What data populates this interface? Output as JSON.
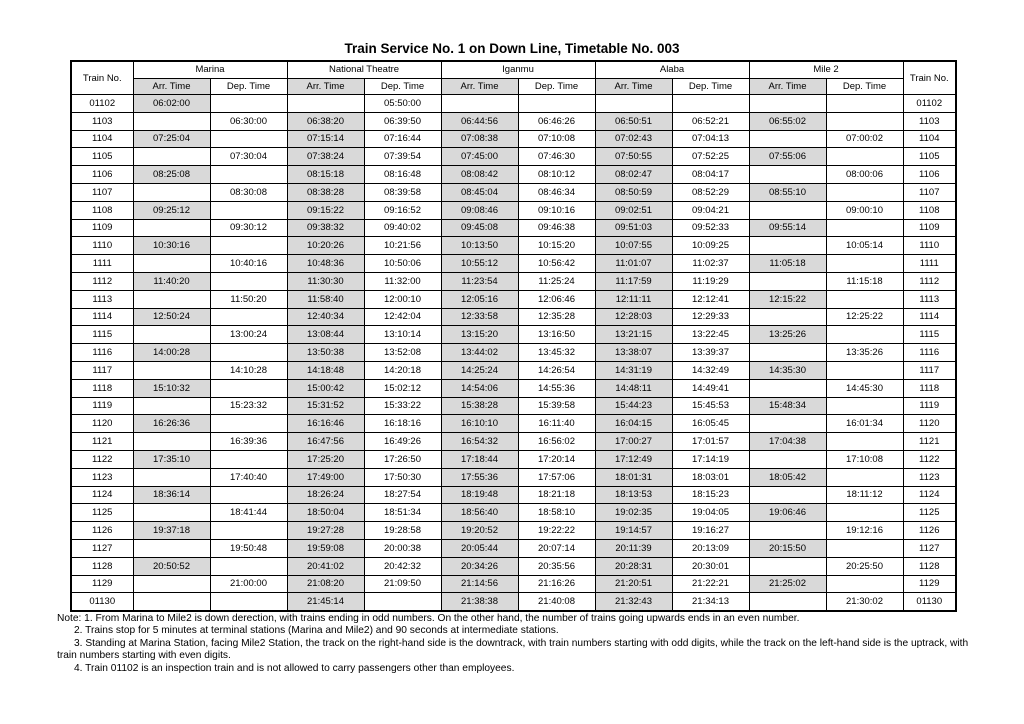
{
  "title": "Train Service No. 1 on Down Line, Timetable No. 003",
  "colors": {
    "shaded_cell": "#d9d9d9",
    "border": "#000000"
  },
  "table": {
    "train_no_header": "Train No.",
    "stations": [
      "Marina",
      "National Theatre",
      "Iganmu",
      "Alaba",
      "Mile 2"
    ],
    "arr_label": "Arr. Time",
    "dep_label": "Dep. Time",
    "columns_per_station": [
      "arr",
      "dep"
    ],
    "rows": [
      {
        "no": "01102",
        "times": [
          "06:02:00",
          "",
          "",
          "05:50:00",
          "",
          "",
          "",
          "",
          "",
          ""
        ]
      },
      {
        "no": "1103",
        "times": [
          "",
          "06:30:00",
          "06:38:20",
          "06:39:50",
          "06:44:56",
          "06:46:26",
          "06:50:51",
          "06:52:21",
          "06:55:02",
          ""
        ]
      },
      {
        "no": "1104",
        "times": [
          "07:25:04",
          "",
          "07:15:14",
          "07:16:44",
          "07:08:38",
          "07:10:08",
          "07:02:43",
          "07:04:13",
          "",
          "07:00:02"
        ]
      },
      {
        "no": "1105",
        "times": [
          "",
          "07:30:04",
          "07:38:24",
          "07:39:54",
          "07:45:00",
          "07:46:30",
          "07:50:55",
          "07:52:25",
          "07:55:06",
          ""
        ]
      },
      {
        "no": "1106",
        "times": [
          "08:25:08",
          "",
          "08:15:18",
          "08:16:48",
          "08:08:42",
          "08:10:12",
          "08:02:47",
          "08:04:17",
          "",
          "08:00:06"
        ]
      },
      {
        "no": "1107",
        "times": [
          "",
          "08:30:08",
          "08:38:28",
          "08:39:58",
          "08:45:04",
          "08:46:34",
          "08:50:59",
          "08:52:29",
          "08:55:10",
          ""
        ]
      },
      {
        "no": "1108",
        "times": [
          "09:25:12",
          "",
          "09:15:22",
          "09:16:52",
          "09:08:46",
          "09:10:16",
          "09:02:51",
          "09:04:21",
          "",
          "09:00:10"
        ]
      },
      {
        "no": "1109",
        "times": [
          "",
          "09:30:12",
          "09:38:32",
          "09:40:02",
          "09:45:08",
          "09:46:38",
          "09:51:03",
          "09:52:33",
          "09:55:14",
          ""
        ]
      },
      {
        "no": "1110",
        "times": [
          "10:30:16",
          "",
          "10:20:26",
          "10:21:56",
          "10:13:50",
          "10:15:20",
          "10:07:55",
          "10:09:25",
          "",
          "10:05:14"
        ]
      },
      {
        "no": "1111",
        "times": [
          "",
          "10:40:16",
          "10:48:36",
          "10:50:06",
          "10:55:12",
          "10:56:42",
          "11:01:07",
          "11:02:37",
          "11:05:18",
          ""
        ]
      },
      {
        "no": "1112",
        "times": [
          "11:40:20",
          "",
          "11:30:30",
          "11:32:00",
          "11:23:54",
          "11:25:24",
          "11:17:59",
          "11:19:29",
          "",
          "11:15:18"
        ]
      },
      {
        "no": "1113",
        "times": [
          "",
          "11:50:20",
          "11:58:40",
          "12:00:10",
          "12:05:16",
          "12:06:46",
          "12:11:11",
          "12:12:41",
          "12:15:22",
          ""
        ]
      },
      {
        "no": "1114",
        "times": [
          "12:50:24",
          "",
          "12:40:34",
          "12:42:04",
          "12:33:58",
          "12:35:28",
          "12:28:03",
          "12:29:33",
          "",
          "12:25:22"
        ]
      },
      {
        "no": "1115",
        "times": [
          "",
          "13:00:24",
          "13:08:44",
          "13:10:14",
          "13:15:20",
          "13:16:50",
          "13:21:15",
          "13:22:45",
          "13:25:26",
          ""
        ]
      },
      {
        "no": "1116",
        "times": [
          "14:00:28",
          "",
          "13:50:38",
          "13:52:08",
          "13:44:02",
          "13:45:32",
          "13:38:07",
          "13:39:37",
          "",
          "13:35:26"
        ]
      },
      {
        "no": "1117",
        "times": [
          "",
          "14:10:28",
          "14:18:48",
          "14:20:18",
          "14:25:24",
          "14:26:54",
          "14:31:19",
          "14:32:49",
          "14:35:30",
          ""
        ]
      },
      {
        "no": "1118",
        "times": [
          "15:10:32",
          "",
          "15:00:42",
          "15:02:12",
          "14:54:06",
          "14:55:36",
          "14:48:11",
          "14:49:41",
          "",
          "14:45:30"
        ]
      },
      {
        "no": "1119",
        "times": [
          "",
          "15:23:32",
          "15:31:52",
          "15:33:22",
          "15:38:28",
          "15:39:58",
          "15:44:23",
          "15:45:53",
          "15:48:34",
          ""
        ]
      },
      {
        "no": "1120",
        "times": [
          "16:26:36",
          "",
          "16:16:46",
          "16:18:16",
          "16:10:10",
          "16:11:40",
          "16:04:15",
          "16:05:45",
          "",
          "16:01:34"
        ]
      },
      {
        "no": "1121",
        "times": [
          "",
          "16:39:36",
          "16:47:56",
          "16:49:26",
          "16:54:32",
          "16:56:02",
          "17:00:27",
          "17:01:57",
          "17:04:38",
          ""
        ]
      },
      {
        "no": "1122",
        "times": [
          "17:35:10",
          "",
          "17:25:20",
          "17:26:50",
          "17:18:44",
          "17:20:14",
          "17:12:49",
          "17:14:19",
          "",
          "17:10:08"
        ]
      },
      {
        "no": "1123",
        "times": [
          "",
          "17:40:40",
          "17:49:00",
          "17:50:30",
          "17:55:36",
          "17:57:06",
          "18:01:31",
          "18:03:01",
          "18:05:42",
          ""
        ]
      },
      {
        "no": "1124",
        "times": [
          "18:36:14",
          "",
          "18:26:24",
          "18:27:54",
          "18:19:48",
          "18:21:18",
          "18:13:53",
          "18:15:23",
          "",
          "18:11:12"
        ]
      },
      {
        "no": "1125",
        "times": [
          "",
          "18:41:44",
          "18:50:04",
          "18:51:34",
          "18:56:40",
          "18:58:10",
          "19:02:35",
          "19:04:05",
          "19:06:46",
          ""
        ]
      },
      {
        "no": "1126",
        "times": [
          "19:37:18",
          "",
          "19:27:28",
          "19:28:58",
          "19:20:52",
          "19:22:22",
          "19:14:57",
          "19:16:27",
          "",
          "19:12:16"
        ]
      },
      {
        "no": "1127",
        "times": [
          "",
          "19:50:48",
          "19:59:08",
          "20:00:38",
          "20:05:44",
          "20:07:14",
          "20:11:39",
          "20:13:09",
          "20:15:50",
          ""
        ]
      },
      {
        "no": "1128",
        "times": [
          "20:50:52",
          "",
          "20:41:02",
          "20:42:32",
          "20:34:26",
          "20:35:56",
          "20:28:31",
          "20:30:01",
          "",
          "20:25:50"
        ]
      },
      {
        "no": "1129",
        "times": [
          "",
          "21:00:00",
          "21:08:20",
          "21:09:50",
          "21:14:56",
          "21:16:26",
          "21:20:51",
          "21:22:21",
          "21:25:02",
          ""
        ]
      },
      {
        "no": "01130",
        "times": [
          "",
          "",
          "21:45:14",
          "",
          "21:38:38",
          "21:40:08",
          "21:32:43",
          "21:34:13",
          "",
          "21:30:02"
        ]
      }
    ]
  },
  "notes": [
    "Note: 1. From Marina to Mile2 is down derection, with trains ending in odd numbers. On the other hand, the number of trains going upwards ends in an even number.",
    "2. Trains stop for 5 minutes at terminal stations (Marina and Mile2) and 90 seconds at intermediate stations.",
    "3. Standing at Marina Station, facing Mile2 Station, the track on the right-hand side is the downtrack, with train numbers starting with odd digits, while the track on the left-hand side is the uptrack, with train numbers starting with even digits.",
    "4. Train 01102 is an inspection train and is not allowed to carry passengers other than employees."
  ]
}
